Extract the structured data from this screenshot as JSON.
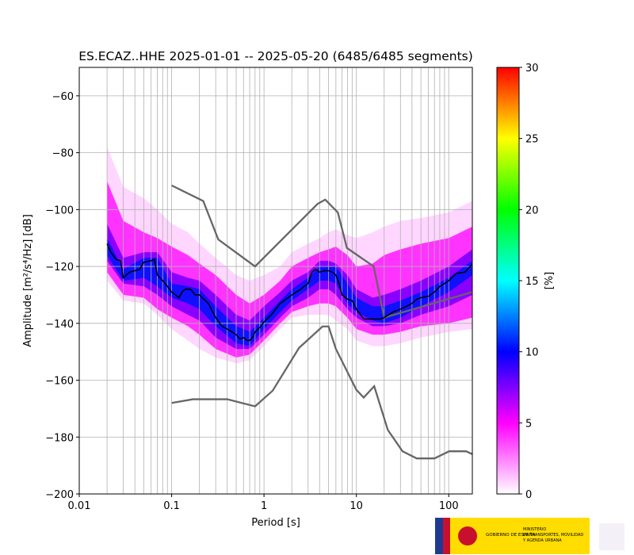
{
  "chart_data": {
    "type": "ppsd",
    "title": "ES.ECAZ..HHE   2025-01-01 -- 2025-05-20  (6485/6485 segments)",
    "x_label": "Period [s]",
    "y_label": "Amplitude [m²/s⁴/Hz] [dB]",
    "xscale": "log",
    "xlim": [
      0.01,
      180
    ],
    "xticks": [
      0.01,
      0.1,
      1,
      10,
      100
    ],
    "x_minor_grid": true,
    "ylim": [
      -200,
      -50
    ],
    "yticks": [
      {
        "value": -200,
        "label": "−200"
      },
      {
        "value": -180,
        "label": "−180"
      },
      {
        "value": -160,
        "label": "−160"
      },
      {
        "value": -140,
        "label": "−140"
      },
      {
        "value": -120,
        "label": "−120"
      },
      {
        "value": -100,
        "label": "−100"
      },
      {
        "value": -80,
        "label": "−80"
      },
      {
        "value": -60,
        "label": "−60"
      }
    ],
    "grid": true,
    "bands_x": [
      0.02,
      0.03,
      0.05,
      0.07,
      0.1,
      0.15,
      0.2,
      0.3,
      0.5,
      0.7,
      1,
      1.5,
      2,
      3,
      4,
      5,
      6,
      8,
      10,
      15,
      20,
      30,
      50,
      100,
      180
    ],
    "bands": [
      {
        "color": "#ffd6ff",
        "upper": [
          -78,
          -92,
          -96,
          -100,
          -105,
          -108,
          -112,
          -117,
          -123,
          -125,
          -123,
          -120,
          -115,
          -112,
          -110,
          -108,
          -107,
          -109,
          -110,
          -108,
          -106,
          -104,
          -103,
          -101,
          -97
        ],
        "lower": [
          -125,
          -132,
          -133,
          -137,
          -142,
          -146,
          -149,
          -152,
          -154,
          -153,
          -148,
          -142,
          -138,
          -137,
          -137,
          -137,
          -139,
          -142,
          -146,
          -148,
          -148,
          -147,
          -145,
          -143,
          -142
        ]
      },
      {
        "color": "#ff33ff",
        "upper": [
          -90,
          -104,
          -108,
          -110,
          -113,
          -116,
          -119,
          -123,
          -130,
          -133,
          -130,
          -125,
          -120,
          -117,
          -115,
          -114,
          -113,
          -116,
          -120,
          -119,
          -116,
          -114,
          -112,
          -110,
          -106
        ],
        "lower": [
          -122,
          -130,
          -131,
          -135,
          -138,
          -141,
          -144,
          -149,
          -152,
          -151,
          -146,
          -140,
          -136,
          -134,
          -133,
          -133,
          -134,
          -138,
          -142,
          -144,
          -144,
          -143,
          -141,
          -140,
          -138
        ]
      },
      {
        "color": "#8a00ff",
        "upper": [
          -105,
          -117,
          -115,
          -115,
          -122,
          -124,
          -125,
          -130,
          -137,
          -139,
          -134,
          -129,
          -125,
          -122,
          -118,
          -118,
          -119,
          -123,
          -128,
          -131,
          -130,
          -128,
          -125,
          -120,
          -114
        ],
        "lower": [
          -118,
          -126,
          -127,
          -130,
          -134,
          -137,
          -139,
          -145,
          -149,
          -149,
          -144,
          -138,
          -134,
          -131,
          -128,
          -128,
          -130,
          -135,
          -138,
          -141,
          -141,
          -140,
          -137,
          -134,
          -130
        ]
      },
      {
        "color": "#1010ff",
        "upper": [
          -110,
          -121,
          -117,
          -117,
          -126,
          -127,
          -128,
          -134,
          -141,
          -143,
          -138,
          -132,
          -128,
          -124,
          -120,
          -120,
          -120,
          -126,
          -131,
          -134,
          -134,
          -132,
          -129,
          -124,
          -118
        ],
        "lower": [
          -116,
          -125,
          -124,
          -127,
          -131,
          -133,
          -135,
          -141,
          -147,
          -148,
          -142,
          -136,
          -132,
          -128,
          -125,
          -125,
          -126,
          -133,
          -136,
          -139,
          -140,
          -138,
          -134,
          -129,
          -123
        ]
      }
    ],
    "series": [
      {
        "color": "#666666",
        "x": [
          0.1,
          0.22,
          0.32,
          0.8,
          3.8,
          4.6,
          6.3,
          7.9,
          15.4,
          20,
          180
        ],
        "values": [
          -91.5,
          -97,
          -110.5,
          -120,
          -98,
          -96.5,
          -101,
          -113.5,
          -120,
          -138,
          -129
        ]
      },
      {
        "color": "#666666",
        "x": [
          0.1,
          0.17,
          0.4,
          0.8,
          1.24,
          2.4,
          4.3,
          5,
          6,
          10,
          12,
          15.6,
          21.9,
          31.6,
          45,
          70,
          101,
          154,
          180
        ],
        "values": [
          -168,
          -166.7,
          -166.7,
          -169.2,
          -163.7,
          -148.6,
          -141.1,
          -141.1,
          -149,
          -163.4,
          -166.1,
          -162.1,
          -177.5,
          -185,
          -187.5,
          -187.5,
          -185,
          -185,
          -186
        ]
      },
      {
        "color": "#000000",
        "x": [
          0.02,
          0.022,
          0.025,
          0.028,
          0.03,
          0.035,
          0.04,
          0.045,
          0.05,
          0.06,
          0.065,
          0.07,
          0.08,
          0.09,
          0.1,
          0.11,
          0.12,
          0.13,
          0.14,
          0.16,
          0.18,
          0.2,
          0.25,
          0.3,
          0.35,
          0.4,
          0.45,
          0.5,
          0.55,
          0.6,
          0.65,
          0.7,
          0.75,
          0.8,
          0.9,
          1,
          1.2,
          1.5,
          2,
          2.5,
          3,
          3.3,
          3.6,
          4,
          4.5,
          5,
          5.5,
          6,
          6.5,
          7,
          8,
          9,
          10,
          12,
          15,
          18,
          20,
          25,
          30,
          35,
          40,
          45,
          50,
          60,
          70,
          80,
          90,
          100,
          120,
          150,
          170,
          180
        ],
        "values": [
          -112,
          -115,
          -117.5,
          -118,
          -124,
          -122,
          -121.5,
          -121,
          -118.5,
          -118,
          -117.5,
          -123,
          -125,
          -127,
          -129,
          -130,
          -131,
          -129,
          -128,
          -128,
          -130,
          -130,
          -133,
          -138,
          -141,
          -142,
          -143,
          -144,
          -145.5,
          -145,
          -146,
          -146,
          -145,
          -143,
          -141.5,
          -139.5,
          -137,
          -133,
          -130,
          -128,
          -126,
          -122,
          -121,
          -122,
          -121.5,
          -121.5,
          -122,
          -123,
          -126,
          -130,
          -131.5,
          -132,
          -135,
          -138.5,
          -138.5,
          -138.5,
          -138,
          -136,
          -135,
          -134,
          -133,
          -131.5,
          -131,
          -130.5,
          -129,
          -127,
          -126,
          -125,
          -122.5,
          -122,
          -120,
          -119.5
        ]
      }
    ],
    "colorbar": {
      "label": "[%]",
      "lim": [
        0,
        30
      ],
      "ticks": [
        0,
        5,
        10,
        15,
        20,
        25,
        30
      ],
      "colors": [
        "#ffffff",
        "#ff00ff",
        "#0000ff",
        "#00ffff",
        "#00ff00",
        "#ffff00",
        "#ff0000"
      ]
    }
  },
  "footer": {
    "gov": "GOBIERNO DE ESPAÑA",
    "ministry": [
      "MINISTERIO",
      "DE TRANSPORTES, MOVILIDAD",
      "Y AGENDA URBANA"
    ]
  }
}
